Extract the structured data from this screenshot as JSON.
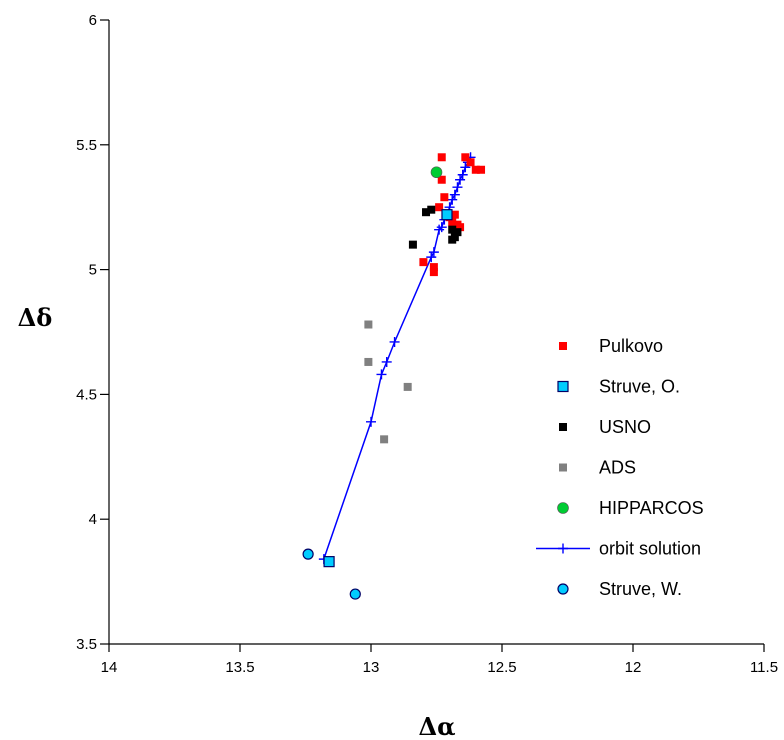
{
  "chart_data": {
    "type": "scatter",
    "xlabel": "Δα",
    "ylabel": "Δδ",
    "xlim": [
      14,
      11.5
    ],
    "ylim": [
      3.5,
      6
    ],
    "x_reversed": true,
    "xticks": [
      "14",
      "13.5",
      "13",
      "12.5",
      "12",
      "11.5"
    ],
    "yticks": [
      "3.5",
      "4",
      "4.5",
      "5",
      "5.5",
      "6"
    ],
    "grid": false,
    "legend_position": "right",
    "series": [
      {
        "name": "Pulkovo",
        "marker": "square",
        "color": "#ff0000",
        "points": [
          [
            12.73,
            5.45
          ],
          [
            12.64,
            5.45
          ],
          [
            12.62,
            5.43
          ],
          [
            12.6,
            5.4
          ],
          [
            12.58,
            5.4
          ],
          [
            12.73,
            5.36
          ],
          [
            12.72,
            5.29
          ],
          [
            12.74,
            5.25
          ],
          [
            12.7,
            5.21
          ],
          [
            12.68,
            5.22
          ],
          [
            12.67,
            5.18
          ],
          [
            12.66,
            5.17
          ],
          [
            12.8,
            5.03
          ],
          [
            12.76,
            5.01
          ],
          [
            12.76,
            4.99
          ],
          [
            12.69,
            5.19
          ]
        ]
      },
      {
        "name": "Struve, O.",
        "marker": "square-outline",
        "color": "#00ccff",
        "points": [
          [
            13.16,
            3.83
          ],
          [
            12.71,
            5.22
          ]
        ]
      },
      {
        "name": "USNO",
        "marker": "square",
        "color": "#000000",
        "points": [
          [
            12.79,
            5.23
          ],
          [
            12.77,
            5.24
          ],
          [
            12.84,
            5.1
          ],
          [
            12.69,
            5.16
          ],
          [
            12.68,
            5.13
          ],
          [
            12.69,
            5.12
          ],
          [
            12.67,
            5.15
          ]
        ]
      },
      {
        "name": "ADS",
        "marker": "square",
        "color": "#808080",
        "points": [
          [
            13.01,
            4.78
          ],
          [
            13.01,
            4.63
          ],
          [
            12.86,
            4.53
          ],
          [
            12.95,
            4.32
          ]
        ]
      },
      {
        "name": "HIPPARCOS",
        "marker": "circle",
        "color": "#00cc33",
        "points": [
          [
            12.75,
            5.39
          ]
        ]
      },
      {
        "name": "orbit solution",
        "marker": "line-plus",
        "color": "#0000ff",
        "points": [
          [
            13.18,
            3.84
          ],
          [
            13.0,
            4.39
          ],
          [
            12.96,
            4.58
          ],
          [
            12.94,
            4.63
          ],
          [
            12.91,
            4.71
          ],
          [
            12.77,
            5.05
          ],
          [
            12.76,
            5.07
          ],
          [
            12.74,
            5.16
          ],
          [
            12.73,
            5.17
          ],
          [
            12.72,
            5.2
          ],
          [
            12.71,
            5.22
          ],
          [
            12.7,
            5.25
          ],
          [
            12.69,
            5.28
          ],
          [
            12.68,
            5.3
          ],
          [
            12.67,
            5.33
          ],
          [
            12.66,
            5.36
          ],
          [
            12.65,
            5.38
          ],
          [
            12.64,
            5.41
          ],
          [
            12.63,
            5.43
          ],
          [
            12.62,
            5.45
          ]
        ]
      },
      {
        "name": "Struve, W.",
        "marker": "circle-outline",
        "color": "#00ccff",
        "points": [
          [
            13.24,
            3.86
          ],
          [
            13.06,
            3.7
          ]
        ]
      }
    ]
  }
}
